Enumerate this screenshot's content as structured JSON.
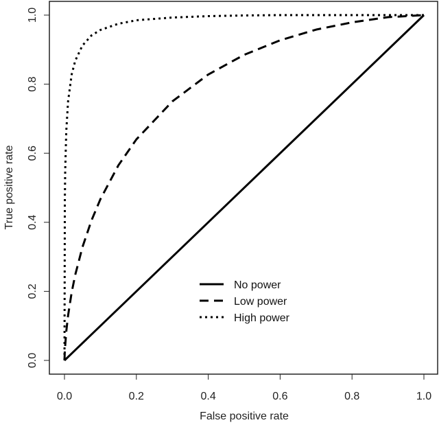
{
  "chart_data": {
    "type": "line",
    "title": "",
    "xlabel": "False positive rate",
    "ylabel": "True positive rate",
    "xlim": [
      0,
      1
    ],
    "ylim": [
      0,
      1
    ],
    "grid": false,
    "legend_position": "bottom-center",
    "x_ticks": [
      "0.0",
      "0.2",
      "0.4",
      "0.6",
      "0.8",
      "1.0"
    ],
    "y_ticks": [
      "0.0",
      "0.2",
      "0.4",
      "0.6",
      "0.8",
      "1.0"
    ],
    "line_color": "#000000",
    "series": [
      {
        "name": "No power",
        "style": "solid",
        "x": [
          0,
          1
        ],
        "y": [
          0,
          1
        ]
      },
      {
        "name": "Low power",
        "style": "dashed",
        "x": [
          0,
          0.001,
          0.005,
          0.01,
          0.02,
          0.03,
          0.05,
          0.075,
          0.1,
          0.15,
          0.2,
          0.3,
          0.4,
          0.5,
          0.6,
          0.7,
          0.8,
          0.9,
          1
        ],
        "y": [
          0,
          0.029,
          0.084,
          0.13,
          0.197,
          0.248,
          0.328,
          0.405,
          0.467,
          0.565,
          0.64,
          0.75,
          0.828,
          0.885,
          0.927,
          0.958,
          0.979,
          0.994,
          1
        ]
      },
      {
        "name": "High power",
        "style": "dotted",
        "x": [
          0,
          0.001,
          0.002,
          0.005,
          0.01,
          0.02,
          0.03,
          0.05,
          0.075,
          0.1,
          0.15,
          0.2,
          0.3,
          0.4,
          0.5,
          0.6,
          0.8,
          1
        ],
        "y": [
          0,
          0.464,
          0.549,
          0.664,
          0.75,
          0.828,
          0.868,
          0.912,
          0.941,
          0.957,
          0.975,
          0.985,
          0.993,
          0.997,
          0.999,
          1.0,
          1.0,
          1
        ]
      }
    ]
  }
}
